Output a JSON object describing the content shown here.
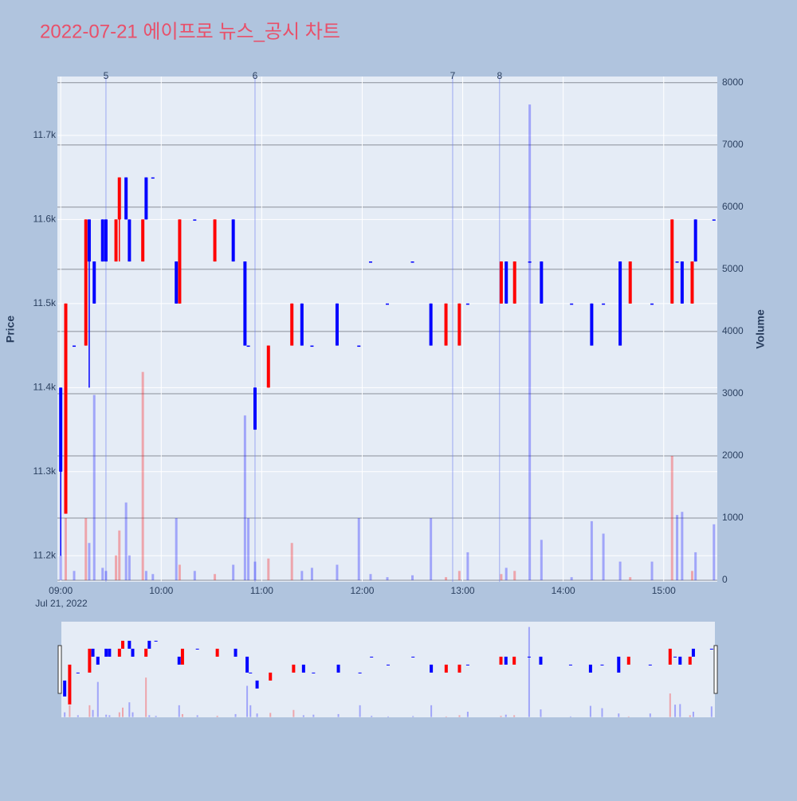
{
  "chart_data": {
    "type": "candlestick",
    "title": "2022-07-21 에이프로 뉴스_공시 차트",
    "ylabel": "Price",
    "y2label": "Volume",
    "x_date_label": "Jul 21, 2022",
    "increasing_color": "#ff0000",
    "decreasing_color": "#0000ff",
    "x": [
      "09:00",
      "09:03",
      "09:08",
      "09:15",
      "09:17",
      "09:20",
      "09:25",
      "09:27",
      "09:33",
      "09:35",
      "09:39",
      "09:41",
      "09:49",
      "09:51",
      "09:55",
      "10:09",
      "10:11",
      "10:20",
      "10:32",
      "10:43",
      "10:50",
      "10:52",
      "10:56",
      "11:04",
      "11:18",
      "11:24",
      "11:30",
      "11:45",
      "11:58",
      "12:05",
      "12:15",
      "12:30",
      "12:41",
      "12:50",
      "12:58",
      "13:03",
      "13:23",
      "13:26",
      "13:31",
      "13:40",
      "13:47",
      "14:05",
      "14:17",
      "14:24",
      "14:34",
      "14:40",
      "14:53",
      "15:05",
      "15:08",
      "15:11",
      "15:17",
      "15:19",
      "15:30"
    ],
    "open": [
      11400,
      11250,
      11450,
      11450,
      11600,
      11550,
      11600,
      11600,
      11550,
      11600,
      11650,
      11600,
      11550,
      11650,
      11650,
      11550,
      11500,
      11600,
      11550,
      11600,
      11550,
      11450,
      11400,
      11400,
      11450,
      11500,
      11450,
      11500,
      11450,
      11550,
      11500,
      11550,
      11500,
      11450,
      11450,
      11500,
      11500,
      11550,
      11500,
      11550,
      11550,
      11500,
      11500,
      11500,
      11550,
      11500,
      11500,
      11500,
      11550,
      11550,
      11500,
      11600,
      11600
    ],
    "high": [
      11400,
      11500,
      11450,
      11600,
      11600,
      11550,
      11600,
      11600,
      11600,
      11650,
      11650,
      11600,
      11600,
      11650,
      11650,
      11550,
      11600,
      11600,
      11600,
      11600,
      11550,
      11450,
      11400,
      11450,
      11500,
      11500,
      11450,
      11500,
      11450,
      11550,
      11500,
      11550,
      11500,
      11500,
      11500,
      11500,
      11550,
      11550,
      11550,
      11550,
      11550,
      11500,
      11500,
      11500,
      11550,
      11550,
      11500,
      11600,
      11550,
      11550,
      11550,
      11600,
      11600
    ],
    "low": [
      11200,
      11250,
      11450,
      11450,
      11400,
      11500,
      11550,
      11550,
      11550,
      11550,
      11600,
      11550,
      11550,
      11600,
      11650,
      11500,
      11500,
      11600,
      11550,
      11550,
      11450,
      11450,
      11350,
      11400,
      11450,
      11450,
      11450,
      11450,
      11450,
      11550,
      11500,
      11550,
      11450,
      11450,
      11450,
      11500,
      11500,
      11500,
      11500,
      11550,
      11500,
      11500,
      11450,
      11500,
      11450,
      11500,
      11500,
      11500,
      11550,
      11500,
      11500,
      11550,
      11600
    ],
    "close": [
      11300,
      11500,
      11450,
      11600,
      11550,
      11500,
      11550,
      11550,
      11600,
      11650,
      11600,
      11550,
      11600,
      11600,
      11650,
      11500,
      11600,
      11600,
      11600,
      11550,
      11450,
      11450,
      11350,
      11450,
      11500,
      11450,
      11450,
      11450,
      11450,
      11550,
      11500,
      11550,
      11450,
      11500,
      11500,
      11500,
      11550,
      11500,
      11550,
      11550,
      11500,
      11500,
      11450,
      11500,
      11450,
      11550,
      11500,
      11600,
      11550,
      11500,
      11550,
      11550,
      11600
    ],
    "volume": [
      400,
      1000,
      150,
      1000,
      600,
      2980,
      200,
      150,
      400,
      800,
      1250,
      400,
      3350,
      150,
      100,
      1000,
      250,
      150,
      100,
      250,
      2650,
      1000,
      300,
      350,
      600,
      150,
      200,
      250,
      1000,
      100,
      50,
      80,
      1000,
      50,
      150,
      450,
      100,
      200,
      150,
      7650,
      650,
      50,
      950,
      750,
      300,
      50,
      300,
      2000,
      1050,
      1100,
      150,
      450,
      900
    ],
    "events": [
      {
        "x": "09:27",
        "label": "5"
      },
      {
        "x": "10:56",
        "label": "6"
      },
      {
        "x": "12:54",
        "label": "7"
      },
      {
        "x": "13:22",
        "label": "8"
      }
    ],
    "xlim": [
      "08:58",
      "15:32"
    ],
    "xticks": [
      "09:00",
      "10:00",
      "11:00",
      "12:00",
      "13:00",
      "14:00",
      "15:00"
    ],
    "ylim": [
      11169,
      11770
    ],
    "yticks": [
      {
        "value": 11200,
        "label": "11.2k"
      },
      {
        "value": 11300,
        "label": "11.3k"
      },
      {
        "value": 11400,
        "label": "11.4k"
      },
      {
        "value": 11500,
        "label": "11.5k"
      },
      {
        "value": 11600,
        "label": "11.6k"
      },
      {
        "value": 11700,
        "label": "11.7k"
      }
    ],
    "y2lim": [
      -25,
      8100
    ],
    "y2ticks": [
      0,
      1000,
      2000,
      3000,
      4000,
      5000,
      6000,
      7000,
      8000
    ],
    "grid": true
  }
}
